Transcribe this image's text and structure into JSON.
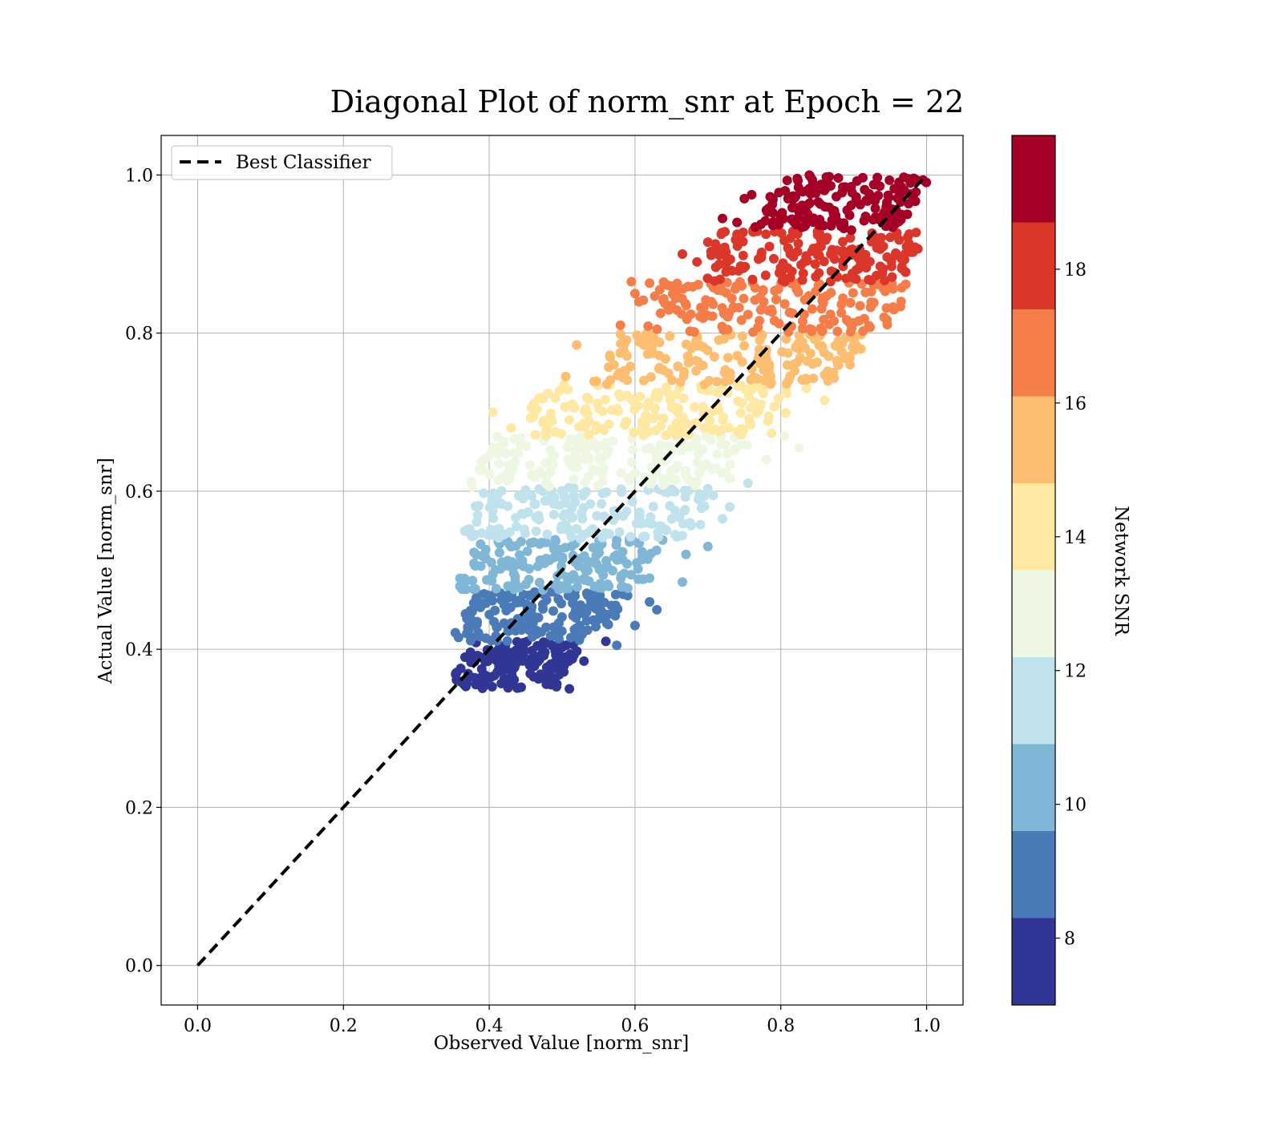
{
  "chart_data": {
    "type": "scatter",
    "title": "Diagonal Plot of norm_snr at Epoch = 22",
    "xlabel": "Observed Value [norm_snr]",
    "ylabel": "Actual Value [norm_snr]",
    "xlim": [
      -0.05,
      1.05
    ],
    "ylim": [
      -0.05,
      1.05
    ],
    "xticks": [
      0.0,
      0.2,
      0.4,
      0.6,
      0.8,
      1.0
    ],
    "yticks": [
      0.0,
      0.2,
      0.4,
      0.6,
      0.8,
      1.0
    ],
    "xtick_labels": [
      "0.0",
      "0.2",
      "0.4",
      "0.6",
      "0.8",
      "1.0"
    ],
    "ytick_labels": [
      "0.0",
      "0.2",
      "0.4",
      "0.6",
      "0.8",
      "1.0"
    ],
    "grid": true,
    "legend": {
      "placement": "upper-left",
      "entries": [
        "Best Classifier"
      ]
    },
    "reference_line": {
      "name": "Best Classifier",
      "style": "dashed",
      "color": "#000000",
      "x": [
        0.0,
        1.0
      ],
      "y": [
        0.0,
        1.0
      ]
    },
    "colorbar": {
      "label": "Network SNR",
      "range": [
        7,
        20
      ],
      "ticks": [
        8,
        10,
        12,
        14,
        16,
        18
      ],
      "tick_labels": [
        "8",
        "10",
        "12",
        "14",
        "16",
        "18"
      ],
      "bands": [
        {
          "from": 7.0,
          "to": 8.3,
          "color": "#313695"
        },
        {
          "from": 8.3,
          "to": 9.6,
          "color": "#4a7ab7"
        },
        {
          "from": 9.6,
          "to": 10.9,
          "color": "#81b7d6"
        },
        {
          "from": 10.9,
          "to": 12.2,
          "color": "#bfe2ed"
        },
        {
          "from": 12.2,
          "to": 13.5,
          "color": "#eef7e1"
        },
        {
          "from": 13.5,
          "to": 14.8,
          "color": "#fee8a2"
        },
        {
          "from": 14.8,
          "to": 16.1,
          "color": "#fdbe72"
        },
        {
          "from": 16.1,
          "to": 17.4,
          "color": "#f57d4a"
        },
        {
          "from": 17.4,
          "to": 18.7,
          "color": "#da362a"
        },
        {
          "from": 18.7,
          "to": 20.0,
          "color": "#a50026"
        }
      ]
    },
    "series": [
      {
        "snr_band": [
          7.0,
          8.3
        ],
        "color": "#313695",
        "y_range": [
          0.35,
          0.41
        ],
        "x_range": [
          0.36,
          0.51
        ],
        "outliers": [
          [
            0.53,
            0.385
          ],
          [
            0.56,
            0.41
          ],
          [
            0.51,
            0.35
          ]
        ]
      },
      {
        "snr_band": [
          8.3,
          9.6
        ],
        "color": "#4a7ab7",
        "y_range": [
          0.41,
          0.475
        ],
        "x_range": [
          0.365,
          0.575
        ],
        "outliers": [
          [
            0.62,
            0.46
          ],
          [
            0.63,
            0.45
          ],
          [
            0.575,
            0.405
          ],
          [
            0.6,
            0.43
          ]
        ]
      },
      {
        "snr_band": [
          9.6,
          10.9
        ],
        "color": "#81b7d6",
        "y_range": [
          0.475,
          0.54
        ],
        "x_range": [
          0.37,
          0.63
        ],
        "outliers": [
          [
            0.665,
            0.485
          ],
          [
            0.7,
            0.53
          ],
          [
            0.62,
            0.49
          ],
          [
            0.67,
            0.52
          ]
        ]
      },
      {
        "snr_band": [
          10.9,
          12.2
        ],
        "color": "#bfe2ed",
        "y_range": [
          0.54,
          0.605
        ],
        "x_range": [
          0.375,
          0.7
        ],
        "outliers": [
          [
            0.755,
            0.61
          ],
          [
            0.73,
            0.58
          ],
          [
            0.72,
            0.565
          ],
          [
            0.38,
            0.545
          ]
        ]
      },
      {
        "snr_band": [
          12.2,
          13.5
        ],
        "color": "#eef7e1",
        "y_range": [
          0.605,
          0.67
        ],
        "x_range": [
          0.39,
          0.745
        ],
        "outliers": [
          [
            0.825,
            0.655
          ],
          [
            0.805,
            0.67
          ],
          [
            0.42,
            0.66
          ],
          [
            0.78,
            0.64
          ]
        ]
      },
      {
        "snr_band": [
          13.5,
          14.8
        ],
        "color": "#fee8a2",
        "y_range": [
          0.67,
          0.735
        ],
        "x_range": [
          0.45,
          0.81
        ],
        "outliers": [
          [
            0.405,
            0.7
          ],
          [
            0.43,
            0.68
          ],
          [
            0.86,
            0.715
          ],
          [
            0.835,
            0.73
          ]
        ]
      },
      {
        "snr_band": [
          14.8,
          16.1
        ],
        "color": "#fdbe72",
        "y_range": [
          0.735,
          0.8
        ],
        "x_range": [
          0.56,
          0.895
        ],
        "outliers": [
          [
            0.52,
            0.785
          ],
          [
            0.505,
            0.745
          ],
          [
            0.895,
            0.76
          ],
          [
            0.91,
            0.78
          ]
        ]
      },
      {
        "snr_band": [
          16.1,
          17.4
        ],
        "color": "#f57d4a",
        "y_range": [
          0.8,
          0.865
        ],
        "x_range": [
          0.6,
          0.965
        ],
        "outliers": [
          [
            0.595,
            0.865
          ],
          [
            0.6,
            0.85
          ],
          [
            0.58,
            0.81
          ],
          [
            0.965,
            0.84
          ]
        ]
      },
      {
        "snr_band": [
          17.4,
          18.7
        ],
        "color": "#da362a",
        "y_range": [
          0.865,
          0.93
        ],
        "x_range": [
          0.7,
          0.985
        ],
        "outliers": [
          [
            0.665,
            0.9
          ],
          [
            0.685,
            0.89
          ],
          [
            0.7,
            0.915
          ],
          [
            0.74,
            0.925
          ]
        ]
      },
      {
        "snr_band": [
          18.7,
          20.0
        ],
        "color": "#a50026",
        "y_range": [
          0.93,
          1.0
        ],
        "x_range": [
          0.78,
          0.985
        ],
        "outliers": [
          [
            0.72,
            0.945
          ],
          [
            0.74,
            0.94
          ],
          [
            0.75,
            0.97
          ],
          [
            0.76,
            0.975
          ]
        ]
      }
    ]
  }
}
